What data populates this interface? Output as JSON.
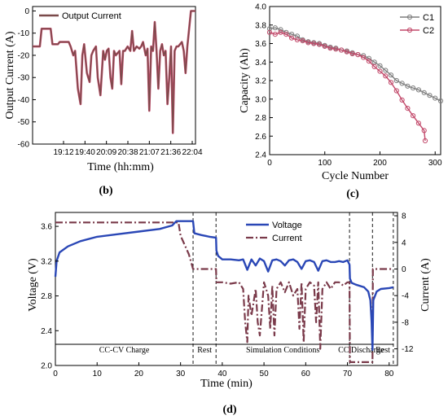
{
  "chart_data": [
    {
      "panel": "(b)",
      "type": "line",
      "xlabel": "Time (hh:mm)",
      "ylabel": "Output Current (A)",
      "x_tick_labels": [
        "19:12",
        "19:40",
        "20:09",
        "20:38",
        "21:07",
        "21:36",
        "22:04"
      ],
      "xlim": [
        0,
        180
      ],
      "ylim": [
        -60,
        2
      ],
      "y_ticks": [
        0,
        -10,
        -20,
        -30,
        -40,
        -50,
        -60
      ],
      "legend": "top-left",
      "series": [
        {
          "name": "Output Current",
          "color": "#7a4a4a",
          "highlight_color": "#c2496a",
          "x": [
            0,
            8,
            10,
            12,
            20,
            22,
            28,
            30,
            40,
            42,
            45,
            47,
            50,
            53,
            55,
            57,
            60,
            63,
            65,
            67,
            70,
            72,
            75,
            78,
            80,
            82,
            84,
            86,
            88,
            90,
            92,
            94,
            96,
            98,
            100,
            102,
            105,
            108,
            110,
            112,
            115,
            118,
            120,
            122,
            125,
            127,
            129,
            131,
            133,
            135,
            137,
            139,
            141,
            143,
            145,
            147,
            149,
            151,
            153,
            155,
            157,
            159,
            161,
            163,
            165,
            167,
            169,
            171,
            175,
            180
          ],
          "y": [
            -16,
            -16,
            -8,
            -8,
            -8,
            -15,
            -15,
            -14,
            -14,
            -16,
            -20,
            -18,
            -35,
            -42,
            -20,
            -15,
            -28,
            -32,
            -20,
            -18,
            -16,
            -30,
            -38,
            -18,
            -22,
            -18,
            -17,
            -30,
            -35,
            -18,
            -20,
            -19,
            -18,
            -33,
            -18,
            -18,
            -16,
            -18,
            -9,
            -18,
            -16,
            -17,
            -16,
            -14,
            -20,
            -17,
            -45,
            -16,
            -18,
            -5,
            -18,
            -35,
            -18,
            -15,
            -20,
            -18,
            -42,
            -30,
            -16,
            -55,
            -18,
            -16,
            -16,
            -15,
            -14,
            -18,
            -28,
            -16,
            0,
            0
          ]
        }
      ]
    },
    {
      "panel": "(c)",
      "type": "line",
      "xlabel": "Cycle Number",
      "ylabel": "Capacity (Ah)",
      "xlim": [
        0,
        310
      ],
      "ylim": [
        2.4,
        4.0
      ],
      "x_ticks": [
        0,
        100,
        200,
        300
      ],
      "y_ticks": [
        2.4,
        2.6,
        2.8,
        3.0,
        3.2,
        3.4,
        3.6,
        3.8,
        4.0
      ],
      "legend": "top-right",
      "series": [
        {
          "name": "C1",
          "color": "#7f7f7f",
          "x": [
            0,
            10,
            20,
            30,
            40,
            50,
            60,
            70,
            80,
            90,
            100,
            110,
            120,
            130,
            140,
            150,
            160,
            170,
            180,
            190,
            200,
            210,
            220,
            230,
            240,
            250,
            260,
            270,
            280,
            290,
            300,
            310
          ],
          "y": [
            3.76,
            3.77,
            3.75,
            3.72,
            3.7,
            3.68,
            3.64,
            3.62,
            3.61,
            3.6,
            3.58,
            3.56,
            3.55,
            3.53,
            3.52,
            3.5,
            3.48,
            3.47,
            3.44,
            3.4,
            3.36,
            3.31,
            3.26,
            3.2,
            3.17,
            3.14,
            3.12,
            3.1,
            3.07,
            3.04,
            3.01,
            2.98
          ]
        },
        {
          "name": "C2",
          "color": "#c2496a",
          "x": [
            0,
            10,
            20,
            30,
            40,
            50,
            60,
            70,
            80,
            90,
            100,
            110,
            120,
            130,
            140,
            150,
            160,
            170,
            180,
            190,
            200,
            210,
            220,
            230,
            240,
            250,
            260,
            270,
            280,
            282
          ],
          "y": [
            3.72,
            3.7,
            3.72,
            3.7,
            3.66,
            3.64,
            3.63,
            3.61,
            3.6,
            3.59,
            3.57,
            3.55,
            3.54,
            3.53,
            3.51,
            3.49,
            3.48,
            3.45,
            3.41,
            3.35,
            3.3,
            3.25,
            3.18,
            3.09,
            2.99,
            2.9,
            2.82,
            2.74,
            2.66,
            2.55
          ]
        }
      ]
    },
    {
      "panel": "(d)",
      "type": "line",
      "xlabel": "Time (min)",
      "ylabel": "Voltage (V)",
      "y2label": "Current (A)",
      "xlim": [
        0,
        82
      ],
      "ylim": [
        2.0,
        3.76
      ],
      "y2lim": [
        -14.5,
        8.5
      ],
      "x_ticks": [
        0,
        10,
        20,
        30,
        40,
        50,
        60,
        70,
        80
      ],
      "y_ticks": [
        2.0,
        2.4,
        2.8,
        3.2,
        3.6
      ],
      "y2_ticks": [
        8,
        4,
        0,
        -4,
        -8,
        -12
      ],
      "legend": "top-right",
      "phase_lines_x": [
        33,
        38.5,
        70.5,
        76,
        81
      ],
      "phase_labels": [
        {
          "text": "CC-CV Charge",
          "x_start": 0,
          "x_end": 33
        },
        {
          "text": "Rest",
          "x_start": 33,
          "x_end": 38.5
        },
        {
          "text": "Simulation Conditions",
          "x_start": 38.5,
          "x_end": 70.5
        },
        {
          "text": "CC Discharge",
          "x_start": 70.5,
          "x_end": 76
        },
        {
          "text": "Rest",
          "x_start": 76,
          "x_end": 81
        }
      ],
      "series": [
        {
          "name": "Voltage",
          "axis": "left",
          "color": "#2a47b6",
          "dash": "solid",
          "x": [
            0,
            0.3,
            1,
            3,
            6,
            10,
            15,
            20,
            25,
            28,
            29,
            30,
            32,
            33,
            33.3,
            35,
            37,
            38.5,
            38.6,
            39,
            40,
            42,
            44,
            45,
            46,
            47,
            48,
            49,
            50,
            51,
            52,
            53,
            54,
            55,
            56,
            57,
            58,
            59,
            60,
            61,
            62,
            63,
            64,
            65,
            66,
            67,
            68,
            69,
            70,
            70.5,
            70.6,
            71,
            72,
            74,
            75,
            75.5,
            75.8,
            76,
            76.2,
            77,
            78,
            80,
            81
          ],
          "y": [
            3.02,
            3.2,
            3.3,
            3.37,
            3.43,
            3.48,
            3.51,
            3.54,
            3.57,
            3.61,
            3.66,
            3.66,
            3.66,
            3.66,
            3.52,
            3.5,
            3.48,
            3.47,
            3.32,
            3.26,
            3.22,
            3.22,
            3.21,
            3.22,
            3.1,
            3.22,
            3.15,
            3.23,
            3.2,
            3.08,
            3.21,
            3.22,
            3.2,
            3.15,
            3.21,
            3.22,
            3.19,
            3.11,
            3.2,
            3.21,
            3.19,
            3.09,
            3.2,
            3.21,
            3.19,
            3.19,
            3.2,
            3.19,
            3.21,
            3.16,
            3.0,
            2.95,
            2.93,
            2.9,
            2.85,
            2.75,
            2.5,
            2.18,
            2.75,
            2.85,
            2.88,
            2.89,
            2.9
          ]
        },
        {
          "name": "Current",
          "axis": "right",
          "color": "#7a3a4a",
          "dash": "dashdot",
          "x": [
            0,
            28,
            29.5,
            30,
            32,
            33,
            33.1,
            38.5,
            38.6,
            40,
            42,
            44,
            45,
            45.5,
            46,
            46.3,
            47,
            48,
            48.5,
            49,
            50,
            51,
            51.5,
            52,
            52.5,
            53,
            54,
            55,
            56,
            57,
            58,
            58.5,
            59,
            59.5,
            60,
            61,
            62,
            62.5,
            63,
            63.5,
            64,
            65,
            66,
            67,
            68,
            69,
            70,
            70.5,
            70.6,
            76,
            76.1,
            81
          ],
          "y": [
            7.0,
            7.0,
            7.0,
            5.0,
            2.2,
            0.0,
            0.0,
            0.0,
            -2.0,
            -2.0,
            -2.2,
            -2.0,
            -3.0,
            -8.0,
            -11.0,
            -4.0,
            -7.0,
            -3.0,
            -8.0,
            -10.0,
            -2.0,
            -4.0,
            -9.0,
            -2.5,
            -10.0,
            -3.0,
            -2.0,
            -3.5,
            -2.0,
            -4.0,
            -3.0,
            -9.0,
            -2.0,
            -11.0,
            -3.0,
            -2.0,
            -2.5,
            -8.0,
            -2.0,
            -12.0,
            -3.0,
            -2.0,
            -3.0,
            -2.0,
            -2.0,
            -2.5,
            -2.0,
            -2.0,
            -14.0,
            -14.0,
            0.0,
            0.0
          ]
        }
      ]
    }
  ]
}
